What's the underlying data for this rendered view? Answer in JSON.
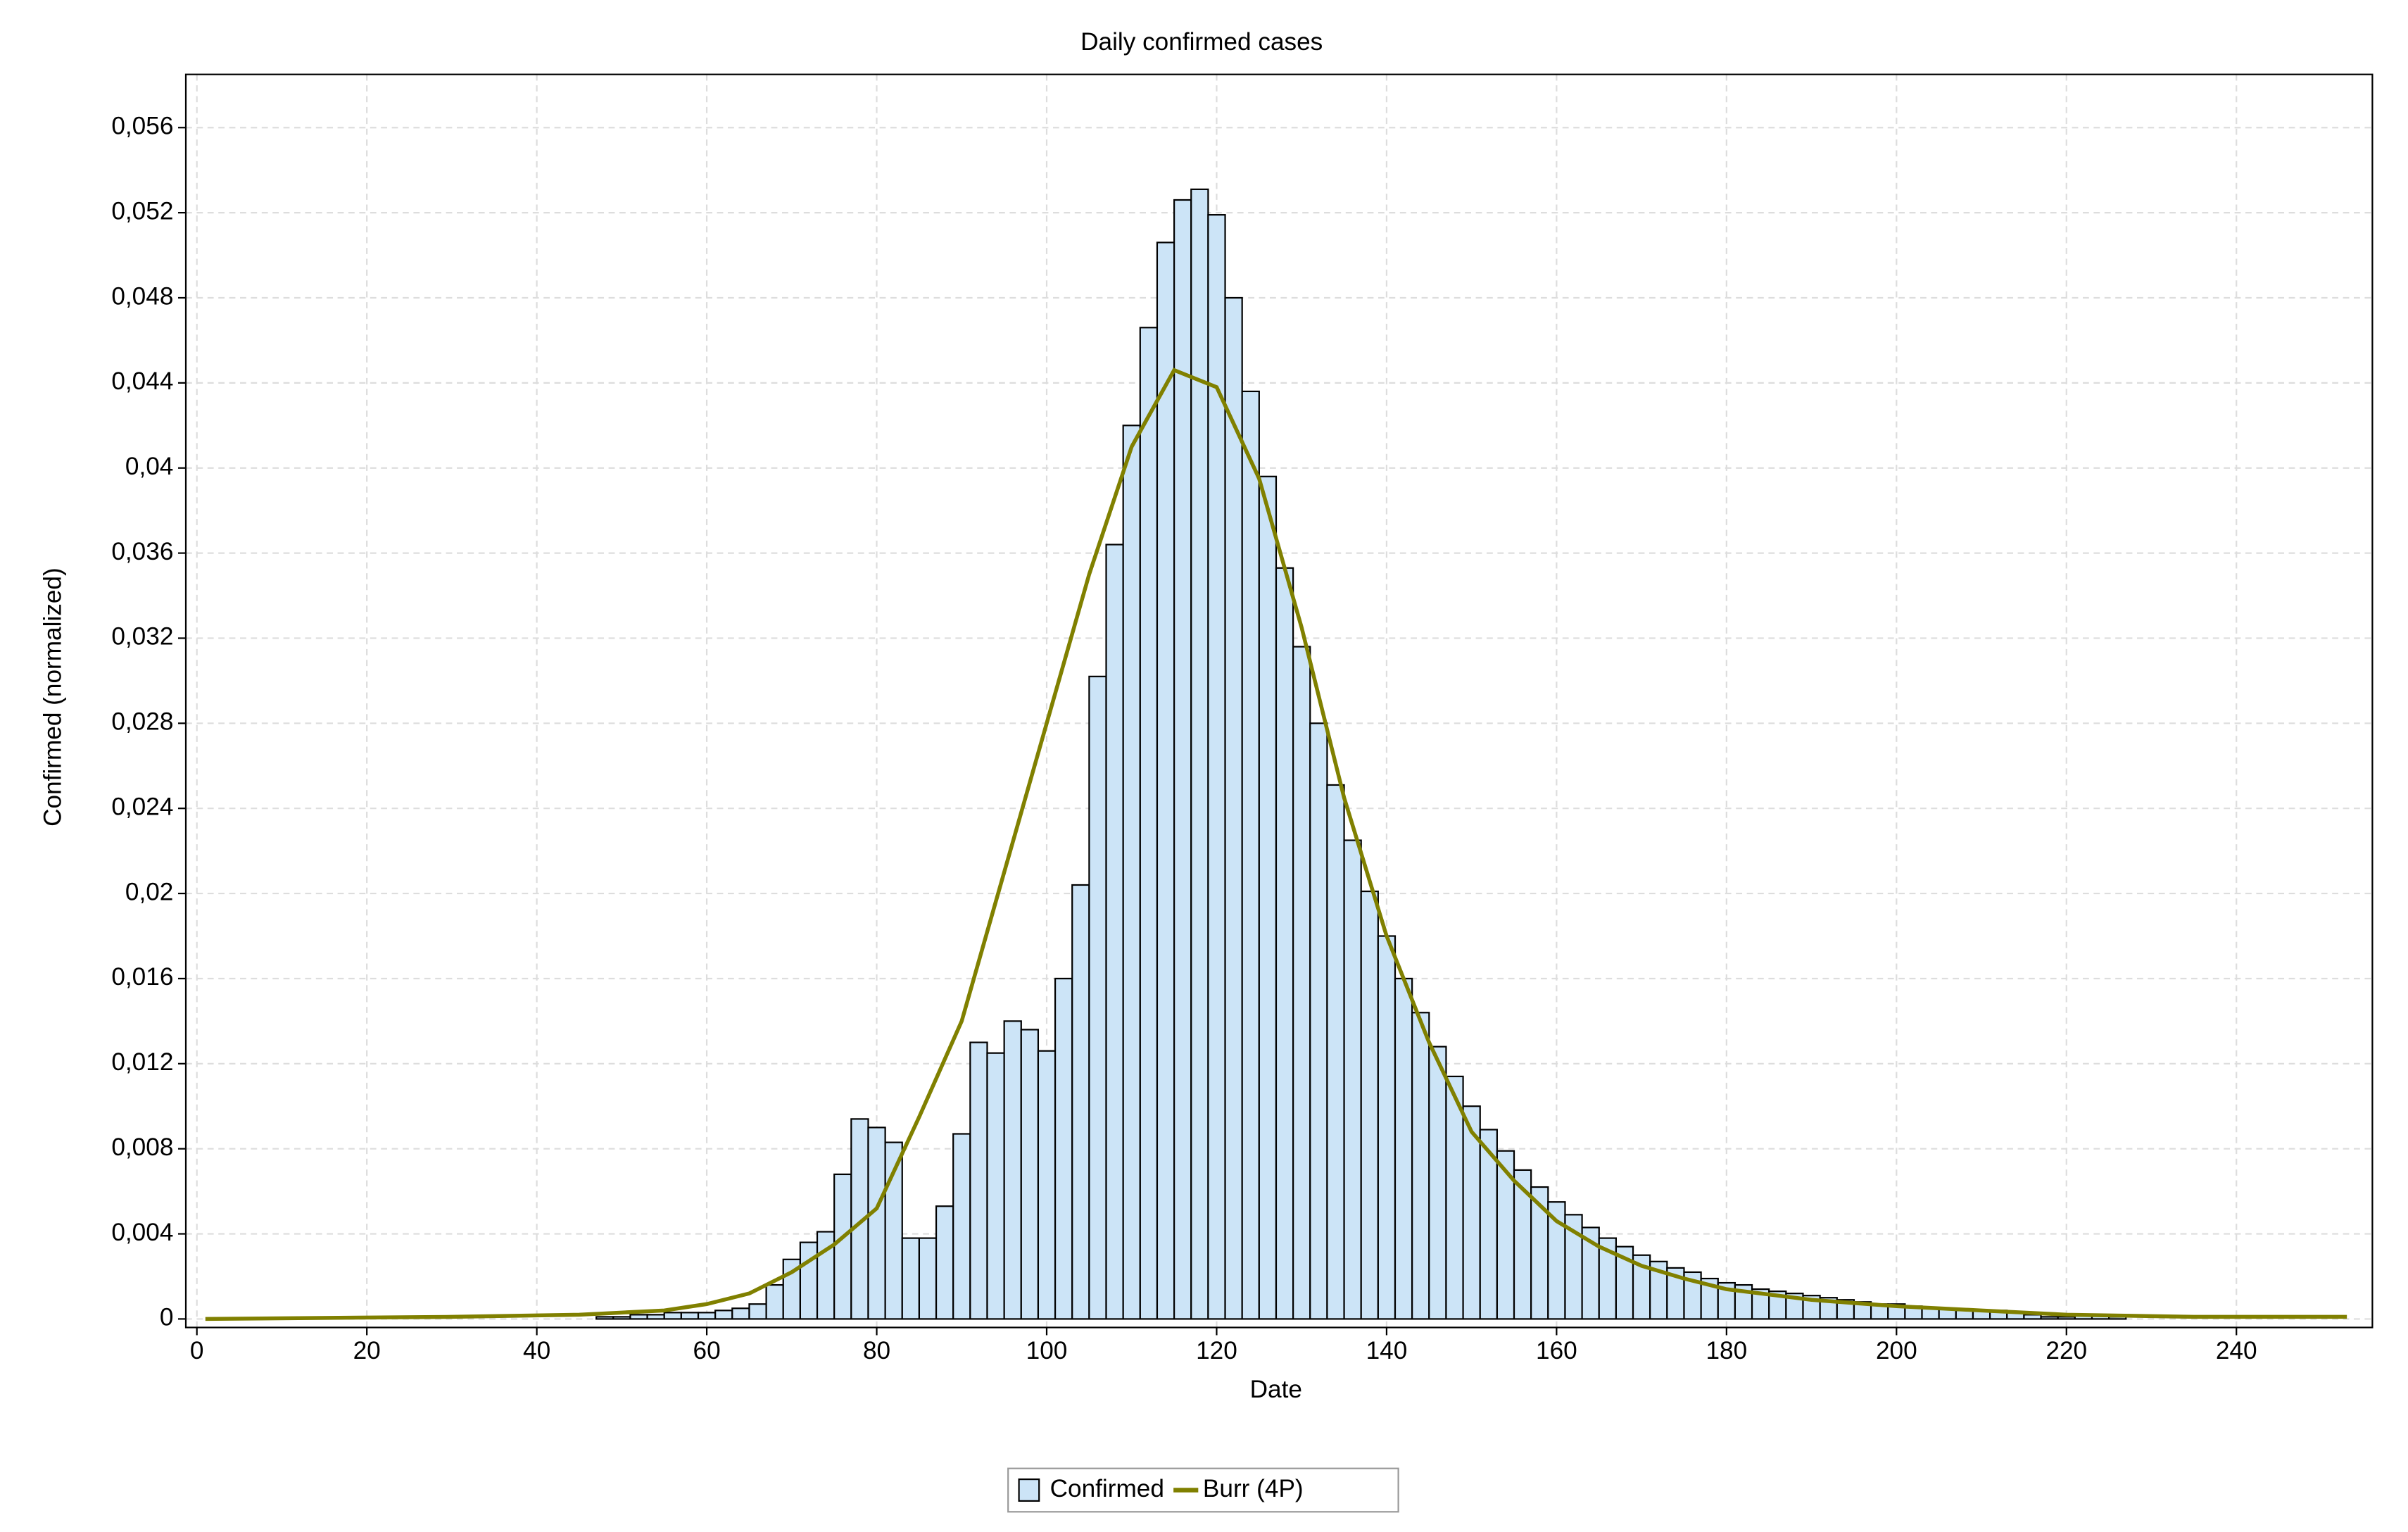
{
  "chart_data": {
    "type": "histogram",
    "title": "Daily confirmed cases",
    "xlabel": "Date",
    "ylabel": "Confirmed (normalized)",
    "xlim": [
      -1.3,
      256
    ],
    "ylim": [
      -0.0004,
      0.0585
    ],
    "xticks": [
      0,
      20,
      40,
      60,
      80,
      100,
      120,
      140,
      160,
      180,
      200,
      220,
      240
    ],
    "yticks": [
      0,
      {
        "value": 0.004,
        "label": "0,004"
      },
      {
        "value": 0.008,
        "label": "0,008"
      },
      {
        "value": 0.012,
        "label": "0,012"
      },
      {
        "value": 0.016,
        "label": "0,016"
      },
      {
        "value": 0.02,
        "label": "0,02"
      },
      {
        "value": 0.024,
        "label": "0,024"
      },
      {
        "value": 0.028,
        "label": "0,028"
      },
      {
        "value": 0.032,
        "label": "0,032"
      },
      {
        "value": 0.036,
        "label": "0,036"
      },
      {
        "value": 0.04,
        "label": "0,04"
      },
      {
        "value": 0.044,
        "label": "0,044"
      },
      {
        "value": 0.048,
        "label": "0,048"
      },
      {
        "value": 0.052,
        "label": "0,052"
      },
      {
        "value": 0.056,
        "label": "0,056"
      }
    ],
    "grid": true,
    "legend": "bottom",
    "series": [
      {
        "name": "Confirmed",
        "type": "histogram",
        "color": "#cce4f7",
        "bins": [
          1,
          3,
          5,
          7,
          9,
          11,
          13,
          15,
          17,
          19,
          21,
          23,
          25,
          27,
          29,
          31,
          33,
          35,
          37,
          39,
          41,
          43,
          45,
          47,
          49,
          51,
          53,
          55,
          57,
          59,
          61,
          63,
          65,
          67,
          69,
          71,
          73,
          75,
          77,
          79,
          81,
          83,
          85,
          87,
          89,
          91,
          93,
          95,
          97,
          99,
          101,
          103,
          105,
          107,
          109,
          111,
          113,
          115,
          117,
          119,
          121,
          123,
          125,
          127,
          129,
          131,
          133,
          135,
          137,
          139,
          141,
          143,
          145,
          147,
          149,
          151,
          153,
          155,
          157,
          159,
          161,
          163,
          165,
          167,
          169,
          171,
          173,
          175,
          177,
          179,
          181,
          183,
          185,
          187,
          189,
          191,
          193,
          195,
          197,
          199,
          201,
          203,
          205,
          207,
          209,
          211,
          213,
          215,
          217,
          219,
          221,
          223,
          225,
          227,
          229,
          231,
          233,
          235,
          237,
          239,
          241,
          243,
          245,
          247,
          249,
          251,
          253
        ],
        "values": [
          0,
          0,
          0,
          0,
          0,
          0,
          0,
          0,
          0,
          0,
          0,
          0,
          0,
          0,
          0,
          0,
          0,
          0,
          0,
          0,
          0,
          0,
          0,
          0.0001,
          0.0001,
          0.0002,
          0.0002,
          0.0003,
          0.0003,
          0.0003,
          0.0004,
          0.0005,
          0.0007,
          0.0016,
          0.0028,
          0.0036,
          0.0041,
          0.0068,
          0.0094,
          0.009,
          0.0083,
          0.0038,
          0.0038,
          0.0053,
          0.0087,
          0.013,
          0.0125,
          0.014,
          0.0136,
          0.0126,
          0.016,
          0.0204,
          0.0302,
          0.0364,
          0.042,
          0.0466,
          0.0506,
          0.0526,
          0.0531,
          0.0519,
          0.048,
          0.0436,
          0.0396,
          0.0353,
          0.0316,
          0.028,
          0.0251,
          0.0225,
          0.0201,
          0.018,
          0.016,
          0.0144,
          0.0128,
          0.0114,
          0.01,
          0.0089,
          0.0079,
          0.007,
          0.0062,
          0.0055,
          0.0049,
          0.0043,
          0.0038,
          0.0034,
          0.003,
          0.0027,
          0.0024,
          0.0022,
          0.0019,
          0.0017,
          0.0016,
          0.0014,
          0.0013,
          0.0012,
          0.0011,
          0.001,
          0.0009,
          0.0008,
          0.0007,
          0.0007,
          0.0006,
          0.0005,
          0.0005,
          0.0004,
          0.0004,
          0.0004,
          0.0003,
          0.0002,
          0.0001,
          0.0001,
          0.0002,
          0.0002,
          0.0001,
          0,
          0,
          0,
          0,
          0,
          0,
          0,
          0,
          0,
          0,
          0,
          0,
          0
        ]
      },
      {
        "name": "Burr (4P)",
        "type": "line",
        "color": "#808000",
        "x": [
          1,
          30,
          45,
          50,
          55,
          60,
          65,
          70,
          75,
          80,
          85,
          90,
          95,
          100,
          105,
          110,
          115,
          120,
          125,
          130,
          135,
          140,
          145,
          150,
          155,
          160,
          165,
          170,
          175,
          180,
          190,
          200,
          210,
          220,
          235,
          253
        ],
        "values": [
          0,
          0.0001,
          0.0002,
          0.0003,
          0.0004,
          0.0007,
          0.0012,
          0.0022,
          0.0035,
          0.0052,
          0.0095,
          0.014,
          0.021,
          0.028,
          0.035,
          0.041,
          0.0446,
          0.0438,
          0.0395,
          0.0325,
          0.0245,
          0.018,
          0.013,
          0.0088,
          0.0065,
          0.0046,
          0.0034,
          0.0025,
          0.0019,
          0.0014,
          0.0009,
          0.0006,
          0.0004,
          0.0002,
          0.0001,
          0.0001
        ]
      }
    ]
  }
}
